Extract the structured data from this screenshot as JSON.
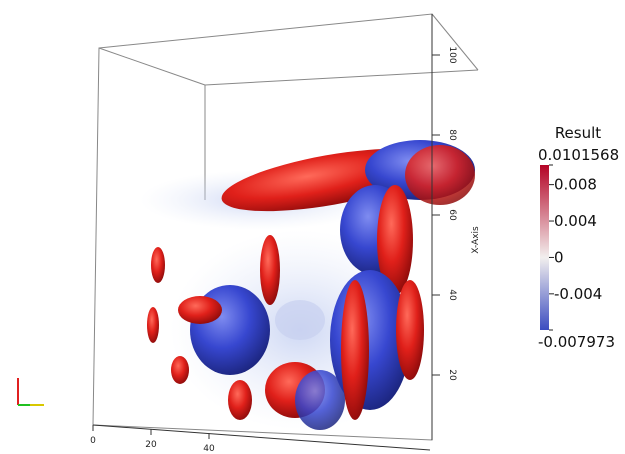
{
  "scalar_bar": {
    "title": "Result",
    "range": [
      -0.007973,
      0.0101568
    ],
    "ticks": [
      -0.004,
      0,
      0.004,
      0.008
    ]
  },
  "axes": {
    "vertical": {
      "label": "X-Axis",
      "ticks": [
        20,
        40,
        60,
        80,
        100
      ]
    },
    "horizontal": {
      "ticks": [
        0,
        20,
        40
      ]
    }
  }
}
